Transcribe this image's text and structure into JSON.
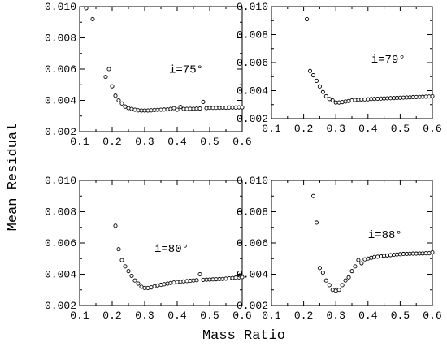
{
  "figure": {
    "ylabel": "Mean Residual",
    "xlabel": "Mass Ratio"
  },
  "chart_data": [
    {
      "type": "scatter",
      "label": "i=75°",
      "xlim": [
        0.1,
        0.6
      ],
      "ylim": [
        0.002,
        0.01
      ],
      "xticks": [
        "0.1",
        "0.2",
        "0.3",
        "0.4",
        "0.5",
        "0.6"
      ],
      "yticks": [
        "0.002",
        "0.004",
        "0.006",
        "0.008",
        "0.010"
      ],
      "x": [
        0.12,
        0.14,
        0.18,
        0.19,
        0.2,
        0.21,
        0.22,
        0.23,
        0.24,
        0.25,
        0.26,
        0.27,
        0.28,
        0.29,
        0.3,
        0.31,
        0.32,
        0.33,
        0.34,
        0.35,
        0.36,
        0.37,
        0.38,
        0.39,
        0.4,
        0.41,
        0.42,
        0.43,
        0.44,
        0.45,
        0.46,
        0.47,
        0.48,
        0.49,
        0.5,
        0.51,
        0.52,
        0.53,
        0.54,
        0.55,
        0.56,
        0.57,
        0.58,
        0.59,
        0.6
      ],
      "y": [
        0.0099,
        0.0092,
        0.0055,
        0.006,
        0.0049,
        0.0043,
        0.004,
        0.0038,
        0.0036,
        0.0035,
        0.00345,
        0.0034,
        0.00336,
        0.00335,
        0.00335,
        0.00335,
        0.00336,
        0.00338,
        0.00339,
        0.0034,
        0.00341,
        0.00342,
        0.00345,
        0.0035,
        0.0034,
        0.00358,
        0.00345,
        0.00345,
        0.00346,
        0.00346,
        0.00347,
        0.00348,
        0.0039,
        0.0035,
        0.00352,
        0.00352,
        0.00352,
        0.00352,
        0.00353,
        0.00353,
        0.00354,
        0.00354,
        0.00354,
        0.00355,
        0.00355
      ]
    },
    {
      "type": "scatter",
      "label": "i=79°",
      "xlim": [
        0.1,
        0.6
      ],
      "ylim": [
        0.002,
        0.01
      ],
      "xticks": [
        "0.1",
        "0.2",
        "0.3",
        "0.4",
        "0.5",
        "0.6"
      ],
      "yticks": [
        "0.002",
        "0.004",
        "0.006",
        "0.008",
        "0.010"
      ],
      "x": [
        0.21,
        0.22,
        0.23,
        0.24,
        0.25,
        0.26,
        0.27,
        0.28,
        0.29,
        0.3,
        0.31,
        0.32,
        0.33,
        0.34,
        0.35,
        0.36,
        0.37,
        0.38,
        0.39,
        0.4,
        0.41,
        0.42,
        0.43,
        0.44,
        0.45,
        0.46,
        0.47,
        0.48,
        0.49,
        0.5,
        0.51,
        0.52,
        0.53,
        0.54,
        0.55,
        0.56,
        0.57,
        0.58,
        0.59,
        0.6
      ],
      "y": [
        0.0091,
        0.0054,
        0.0051,
        0.0047,
        0.0043,
        0.0039,
        0.0036,
        0.0034,
        0.0033,
        0.00315,
        0.00315,
        0.00318,
        0.00322,
        0.00326,
        0.0033,
        0.00333,
        0.00335,
        0.00336,
        0.00337,
        0.00338,
        0.0034,
        0.00341,
        0.00342,
        0.00343,
        0.00344,
        0.00345,
        0.00346,
        0.00347,
        0.00348,
        0.00349,
        0.0035,
        0.00351,
        0.00352,
        0.00353,
        0.00354,
        0.00355,
        0.00356,
        0.00357,
        0.00358,
        0.0036
      ]
    },
    {
      "type": "scatter",
      "label": "i=80°",
      "xlim": [
        0.1,
        0.6
      ],
      "ylim": [
        0.002,
        0.01
      ],
      "xticks": [
        "0.1",
        "0.2",
        "0.3",
        "0.4",
        "0.5",
        "0.6"
      ],
      "yticks": [
        "0.002",
        "0.004",
        "0.006",
        "0.008",
        "0.010"
      ],
      "x": [
        0.21,
        0.22,
        0.23,
        0.24,
        0.25,
        0.26,
        0.27,
        0.28,
        0.29,
        0.3,
        0.31,
        0.32,
        0.33,
        0.34,
        0.35,
        0.36,
        0.37,
        0.38,
        0.39,
        0.4,
        0.41,
        0.42,
        0.43,
        0.44,
        0.45,
        0.46,
        0.47,
        0.48,
        0.49,
        0.5,
        0.51,
        0.52,
        0.53,
        0.54,
        0.55,
        0.56,
        0.57,
        0.58,
        0.59,
        0.6
      ],
      "y": [
        0.0071,
        0.0056,
        0.0049,
        0.0045,
        0.0042,
        0.0039,
        0.0036,
        0.0034,
        0.0032,
        0.00312,
        0.00312,
        0.00316,
        0.00322,
        0.00328,
        0.00332,
        0.00336,
        0.0034,
        0.00344,
        0.00347,
        0.0035,
        0.00352,
        0.00354,
        0.00356,
        0.00358,
        0.0036,
        0.00362,
        0.004,
        0.00364,
        0.00365,
        0.00366,
        0.00367,
        0.00368,
        0.00369,
        0.0037,
        0.00372,
        0.00374,
        0.00376,
        0.00378,
        0.0038,
        0.00382
      ]
    },
    {
      "type": "scatter",
      "label": "i=88°",
      "xlim": [
        0.1,
        0.6
      ],
      "ylim": [
        0.002,
        0.01
      ],
      "xticks": [
        "0.1",
        "0.2",
        "0.3",
        "0.4",
        "0.5",
        "0.6"
      ],
      "yticks": [
        "0.002",
        "0.004",
        "0.006",
        "0.008",
        "0.010"
      ],
      "x": [
        0.23,
        0.24,
        0.25,
        0.26,
        0.27,
        0.28,
        0.29,
        0.3,
        0.31,
        0.32,
        0.33,
        0.34,
        0.35,
        0.36,
        0.37,
        0.38,
        0.39,
        0.4,
        0.41,
        0.42,
        0.43,
        0.44,
        0.45,
        0.46,
        0.47,
        0.48,
        0.49,
        0.5,
        0.51,
        0.52,
        0.53,
        0.54,
        0.55,
        0.56,
        0.57,
        0.58,
        0.59,
        0.6
      ],
      "y": [
        0.009,
        0.0073,
        0.0044,
        0.0041,
        0.0036,
        0.0033,
        0.003,
        0.00295,
        0.003,
        0.0033,
        0.0036,
        0.0038,
        0.0042,
        0.0045,
        0.0049,
        0.0047,
        0.00495,
        0.005,
        0.00505,
        0.0051,
        0.00512,
        0.00515,
        0.00518,
        0.0052,
        0.00522,
        0.00524,
        0.00526,
        0.00528,
        0.0053,
        0.0053,
        0.00531,
        0.00532,
        0.00532,
        0.00533,
        0.00533,
        0.00534,
        0.00534,
        0.0054
      ]
    }
  ]
}
